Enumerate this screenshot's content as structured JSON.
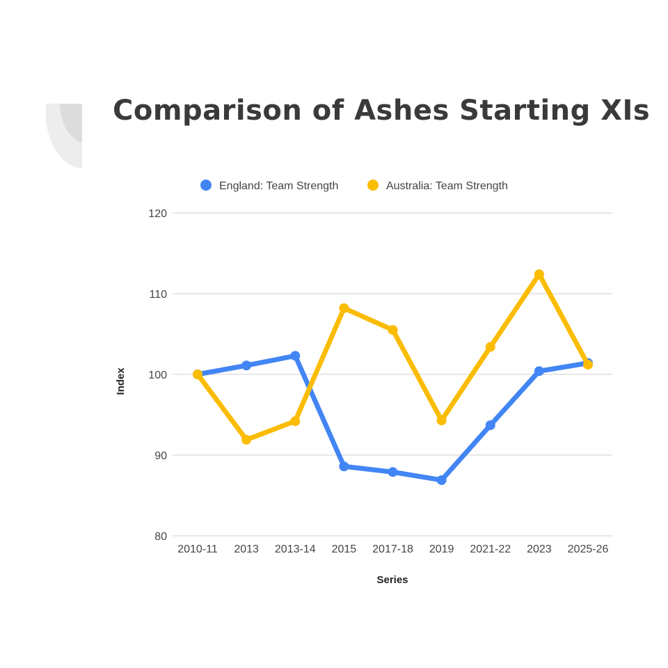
{
  "page": {
    "title": "Comparison of Ashes Starting XIs"
  },
  "colors": {
    "england": "#4285f4",
    "australia": "#fbbc04",
    "grid": "#d9d9d9",
    "text": "#444444",
    "title": "#3a3a3a"
  },
  "chart_data": {
    "type": "line",
    "title": "",
    "xlabel": "Series",
    "ylabel": "Index",
    "categories": [
      "2010-11",
      "2013",
      "2013-14",
      "2015",
      "2017-18",
      "2019",
      "2021-22",
      "2023",
      "2025-26"
    ],
    "ylim": [
      80,
      120
    ],
    "yticks": [
      80,
      90,
      100,
      110,
      120
    ],
    "grid": true,
    "legend": "top",
    "series": [
      {
        "name": "England: Team Strength",
        "color": "#4285f4",
        "values": [
          100,
          101.1,
          102.3,
          88.6,
          87.9,
          86.9,
          93.7,
          100.4,
          101.4
        ]
      },
      {
        "name": "Australia: Team Strength",
        "color": "#fbbc04",
        "values": [
          100,
          91.9,
          94.2,
          108.2,
          105.5,
          94.3,
          103.4,
          112.4,
          101.2
        ]
      }
    ]
  }
}
